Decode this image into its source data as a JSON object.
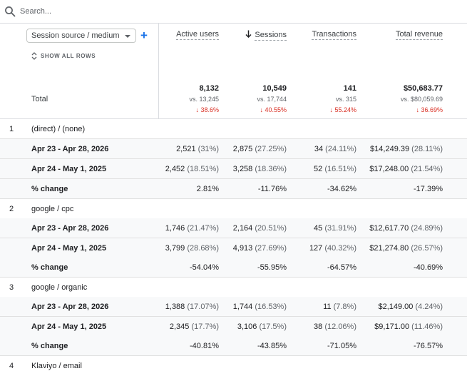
{
  "search": {
    "placeholder": "Search..."
  },
  "dimension": {
    "selected": "Session source / medium",
    "add_label": "+"
  },
  "show_all_rows": "SHOW ALL ROWS",
  "columns": [
    {
      "label": "Active users"
    },
    {
      "label": "Sessions",
      "sorted": true
    },
    {
      "label": "Transactions"
    },
    {
      "label": "Total revenue"
    }
  ],
  "totals": {
    "label": "Total",
    "cells": [
      {
        "value": "8,132",
        "vs": "vs. 13,245",
        "change": "↓ 38.6%"
      },
      {
        "value": "10,549",
        "vs": "vs. 17,744",
        "change": "↓ 40.55%"
      },
      {
        "value": "141",
        "vs": "vs. 315",
        "change": "↓ 55.24%"
      },
      {
        "value": "$50,683.77",
        "vs": "vs. $80,059.69",
        "change": "↓ 36.69%"
      }
    ]
  },
  "groups": [
    {
      "index": "1",
      "name": "(direct) / (none)",
      "rows": [
        {
          "label": "Apr 23 - Apr 28, 2026",
          "cells": [
            [
              "2,521",
              "(31%)"
            ],
            [
              "2,875",
              "(27.25%)"
            ],
            [
              "34",
              "(24.11%)"
            ],
            [
              "$14,249.39",
              "(28.11%)"
            ]
          ]
        },
        {
          "label": "Apr 24 - May 1, 2025",
          "cells": [
            [
              "2,452",
              "(18.51%)"
            ],
            [
              "3,258",
              "(18.36%)"
            ],
            [
              "52",
              "(16.51%)"
            ],
            [
              "$17,248.00",
              "(21.54%)"
            ]
          ]
        },
        {
          "label": "% change",
          "cells": [
            [
              "2.81%",
              ""
            ],
            [
              "-11.76%",
              ""
            ],
            [
              "-34.62%",
              ""
            ],
            [
              "-17.39%",
              ""
            ]
          ]
        }
      ]
    },
    {
      "index": "2",
      "name": "google / cpc",
      "rows": [
        {
          "label": "Apr 23 - Apr 28, 2026",
          "cells": [
            [
              "1,746",
              "(21.47%)"
            ],
            [
              "2,164",
              "(20.51%)"
            ],
            [
              "45",
              "(31.91%)"
            ],
            [
              "$12,617.70",
              "(24.89%)"
            ]
          ]
        },
        {
          "label": "Apr 24 - May 1, 2025",
          "cells": [
            [
              "3,799",
              "(28.68%)"
            ],
            [
              "4,913",
              "(27.69%)"
            ],
            [
              "127",
              "(40.32%)"
            ],
            [
              "$21,274.80",
              "(26.57%)"
            ]
          ]
        },
        {
          "label": "% change",
          "cells": [
            [
              "-54.04%",
              ""
            ],
            [
              "-55.95%",
              ""
            ],
            [
              "-64.57%",
              ""
            ],
            [
              "-40.69%",
              ""
            ]
          ]
        }
      ]
    },
    {
      "index": "3",
      "name": "google / organic",
      "rows": [
        {
          "label": "Apr 23 - Apr 28, 2026",
          "cells": [
            [
              "1,388",
              "(17.07%)"
            ],
            [
              "1,744",
              "(16.53%)"
            ],
            [
              "11",
              "(7.8%)"
            ],
            [
              "$2,149.00",
              "(4.24%)"
            ]
          ]
        },
        {
          "label": "Apr 24 - May 1, 2025",
          "cells": [
            [
              "2,345",
              "(17.7%)"
            ],
            [
              "3,106",
              "(17.5%)"
            ],
            [
              "38",
              "(12.06%)"
            ],
            [
              "$9,171.00",
              "(11.46%)"
            ]
          ]
        },
        {
          "label": "% change",
          "cells": [
            [
              "-40.81%",
              ""
            ],
            [
              "-43.85%",
              ""
            ],
            [
              "-71.05%",
              ""
            ],
            [
              "-76.57%",
              ""
            ]
          ]
        }
      ]
    },
    {
      "index": "4",
      "name": "Klaviyo / email",
      "rows": []
    }
  ]
}
